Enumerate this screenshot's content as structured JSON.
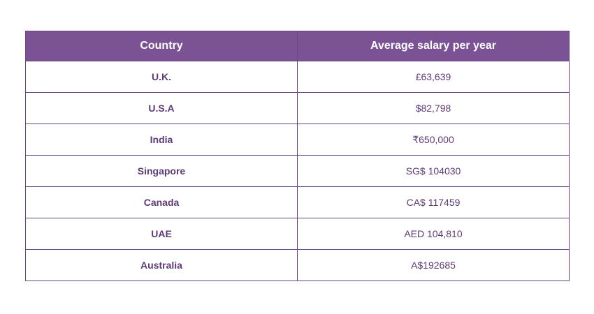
{
  "table": {
    "headers": [
      "Country",
      "Average salary per year"
    ],
    "rows": [
      {
        "country": "U.K.",
        "salary": "£63,639"
      },
      {
        "country": "U.S.A",
        "salary": "$82,798"
      },
      {
        "country": "India",
        "salary": "₹650,000"
      },
      {
        "country": "Singapore",
        "salary": "SG$ 104030"
      },
      {
        "country": "Canada",
        "salary": "CA$ 117459"
      },
      {
        "country": "UAE",
        "salary": "AED 104,810"
      },
      {
        "country": "Australia",
        "salary": "A$192685"
      }
    ]
  },
  "colors": {
    "header_bg": "#7b5294",
    "border": "#6a4583",
    "cell_text": "#5e3a78"
  }
}
